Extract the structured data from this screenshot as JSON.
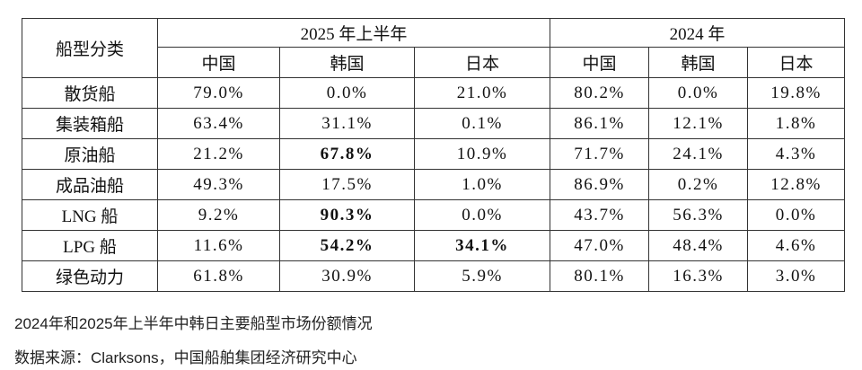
{
  "table": {
    "header": {
      "category_label": "船型分类",
      "groups": [
        "2025 年上半年",
        "2024 年"
      ],
      "subheaders": [
        "中国",
        "韩国",
        "日本",
        "中国",
        "韩国",
        "日本"
      ]
    },
    "rows": [
      {
        "label": "散货船",
        "cells": [
          {
            "text": "79.0%",
            "bold": false
          },
          {
            "text": "0.0%",
            "bold": false
          },
          {
            "text": "21.0%",
            "bold": false
          },
          {
            "text": "80.2%",
            "bold": false
          },
          {
            "text": "0.0%",
            "bold": false
          },
          {
            "text": "19.8%",
            "bold": false
          }
        ]
      },
      {
        "label": "集装箱船",
        "cells": [
          {
            "text": "63.4%",
            "bold": false
          },
          {
            "text": "31.1%",
            "bold": false
          },
          {
            "text": "0.1%",
            "bold": false
          },
          {
            "text": "86.1%",
            "bold": false
          },
          {
            "text": "12.1%",
            "bold": false
          },
          {
            "text": "1.8%",
            "bold": false
          }
        ]
      },
      {
        "label": "原油船",
        "cells": [
          {
            "text": "21.2%",
            "bold": false
          },
          {
            "text": "67.8%",
            "bold": true
          },
          {
            "text": "10.9%",
            "bold": false
          },
          {
            "text": "71.7%",
            "bold": false
          },
          {
            "text": "24.1%",
            "bold": false
          },
          {
            "text": "4.3%",
            "bold": false
          }
        ]
      },
      {
        "label": "成品油船",
        "cells": [
          {
            "text": "49.3%",
            "bold": false
          },
          {
            "text": "17.5%",
            "bold": false
          },
          {
            "text": "1.0%",
            "bold": false
          },
          {
            "text": "86.9%",
            "bold": false
          },
          {
            "text": "0.2%",
            "bold": false
          },
          {
            "text": "12.8%",
            "bold": false
          }
        ]
      },
      {
        "label": "LNG 船",
        "cells": [
          {
            "text": "9.2%",
            "bold": false
          },
          {
            "text": "90.3%",
            "bold": true
          },
          {
            "text": "0.0%",
            "bold": false
          },
          {
            "text": "43.7%",
            "bold": false
          },
          {
            "text": "56.3%",
            "bold": false
          },
          {
            "text": "0.0%",
            "bold": false
          }
        ]
      },
      {
        "label": "LPG 船",
        "cells": [
          {
            "text": "11.6%",
            "bold": false
          },
          {
            "text": "54.2%",
            "bold": true
          },
          {
            "text": "34.1%",
            "bold": true
          },
          {
            "text": "47.0%",
            "bold": false
          },
          {
            "text": "48.4%",
            "bold": false
          },
          {
            "text": "4.6%",
            "bold": false
          }
        ]
      },
      {
        "label": "绿色动力",
        "cells": [
          {
            "text": "61.8%",
            "bold": false
          },
          {
            "text": "30.9%",
            "bold": false
          },
          {
            "text": "5.9%",
            "bold": false
          },
          {
            "text": "80.1%",
            "bold": false
          },
          {
            "text": "16.3%",
            "bold": false
          },
          {
            "text": "3.0%",
            "bold": false
          }
        ]
      }
    ]
  },
  "captions": [
    "2024年和2025年上半年中韩日主要船型市场份额情况",
    "数据来源：Clarksons，中国船舶集团经济研究中心"
  ]
}
